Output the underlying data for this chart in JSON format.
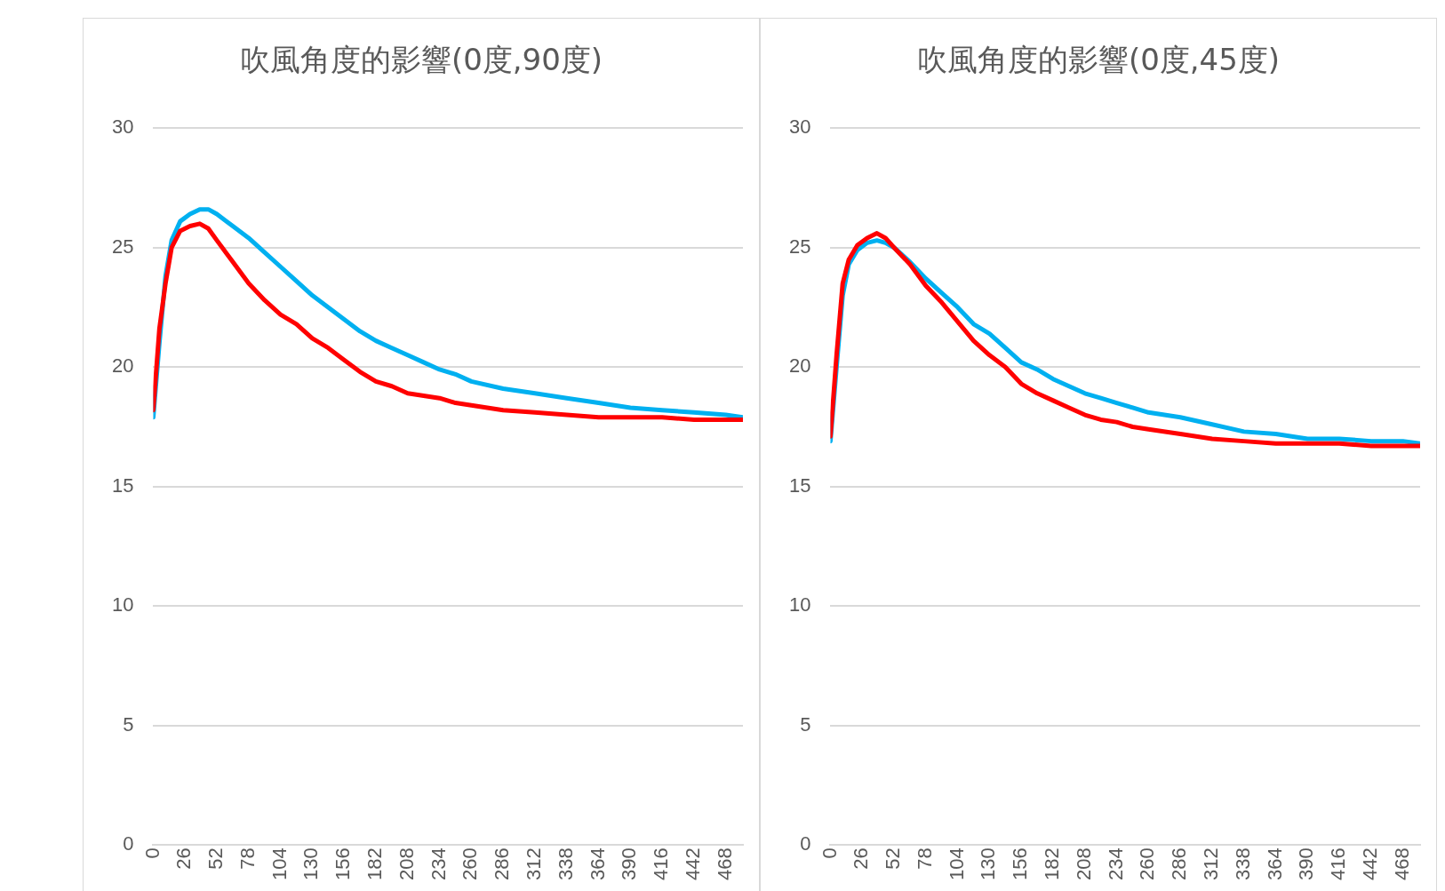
{
  "chart_data": [
    {
      "type": "line",
      "title": "吹風角度的影響(0度,90度)",
      "x": [
        0,
        5,
        10,
        15,
        22,
        30,
        38,
        45,
        52,
        65,
        78,
        91,
        104,
        117,
        130,
        143,
        156,
        169,
        182,
        195,
        208,
        221,
        234,
        247,
        260,
        286,
        312,
        338,
        364,
        390,
        416,
        442,
        468,
        482
      ],
      "series": [
        {
          "color": "#ff0000",
          "values": [
            18.2,
            21.6,
            23.5,
            25,
            25.7,
            25.9,
            26.0,
            25.8,
            25.3,
            24.4,
            23.5,
            22.8,
            22.2,
            21.8,
            21.2,
            20.8,
            20.3,
            19.8,
            19.4,
            19.2,
            18.9,
            18.8,
            18.7,
            18.5,
            18.4,
            18.2,
            18.1,
            18.0,
            17.9,
            17.9,
            17.9,
            17.8,
            17.8,
            17.8
          ]
        },
        {
          "color": "#00b0f0",
          "values": [
            17.9,
            21,
            23.8,
            25.3,
            26.1,
            26.4,
            26.6,
            26.6,
            26.4,
            25.9,
            25.4,
            24.8,
            24.2,
            23.6,
            23.0,
            22.5,
            22.0,
            21.5,
            21.1,
            20.8,
            20.5,
            20.2,
            19.9,
            19.7,
            19.4,
            19.1,
            18.9,
            18.7,
            18.5,
            18.3,
            18.2,
            18.1,
            18.0,
            17.9
          ]
        }
      ],
      "xlim": [
        0,
        482
      ],
      "xticks": [
        0,
        26,
        52,
        78,
        104,
        130,
        156,
        182,
        208,
        234,
        260,
        286,
        312,
        338,
        364,
        390,
        416,
        442,
        468
      ],
      "ylim": [
        0,
        30
      ],
      "yticks": [
        0,
        5,
        10,
        15,
        20,
        25,
        30
      ],
      "grid": "y",
      "legend": false,
      "marker": "none",
      "line_style": "solid"
    },
    {
      "type": "line",
      "title": "吹風角度的影響(0度,45度)",
      "x": [
        0,
        5,
        10,
        15,
        22,
        30,
        38,
        45,
        52,
        65,
        78,
        91,
        104,
        117,
        130,
        143,
        156,
        169,
        182,
        195,
        208,
        221,
        234,
        247,
        260,
        286,
        312,
        338,
        364,
        390,
        416,
        442,
        468,
        482
      ],
      "series": [
        {
          "color": "#ff0000",
          "values": [
            17.1,
            20.5,
            23.5,
            24.5,
            25.1,
            25.4,
            25.6,
            25.4,
            25.0,
            24.3,
            23.4,
            22.7,
            21.9,
            21.1,
            20.5,
            20.0,
            19.3,
            18.9,
            18.6,
            18.3,
            18.0,
            17.8,
            17.7,
            17.5,
            17.4,
            17.2,
            17.0,
            16.9,
            16.8,
            16.8,
            16.8,
            16.7,
            16.7,
            16.7
          ]
        },
        {
          "color": "#00b0f0",
          "values": [
            16.9,
            20,
            23,
            24.3,
            24.9,
            25.2,
            25.3,
            25.2,
            25.0,
            24.4,
            23.7,
            23.1,
            22.5,
            21.8,
            21.4,
            20.8,
            20.2,
            19.9,
            19.5,
            19.2,
            18.9,
            18.7,
            18.5,
            18.3,
            18.1,
            17.9,
            17.6,
            17.3,
            17.2,
            17.0,
            17.0,
            16.9,
            16.9,
            16.8
          ]
        }
      ],
      "xlim": [
        0,
        482
      ],
      "xticks": [
        0,
        26,
        52,
        78,
        104,
        130,
        156,
        182,
        208,
        234,
        260,
        286,
        312,
        338,
        364,
        390,
        416,
        442,
        468
      ],
      "ylim": [
        0,
        30
      ],
      "yticks": [
        0,
        5,
        10,
        15,
        20,
        25,
        30
      ],
      "grid": "y",
      "legend": false,
      "marker": "none",
      "line_style": "solid"
    }
  ]
}
